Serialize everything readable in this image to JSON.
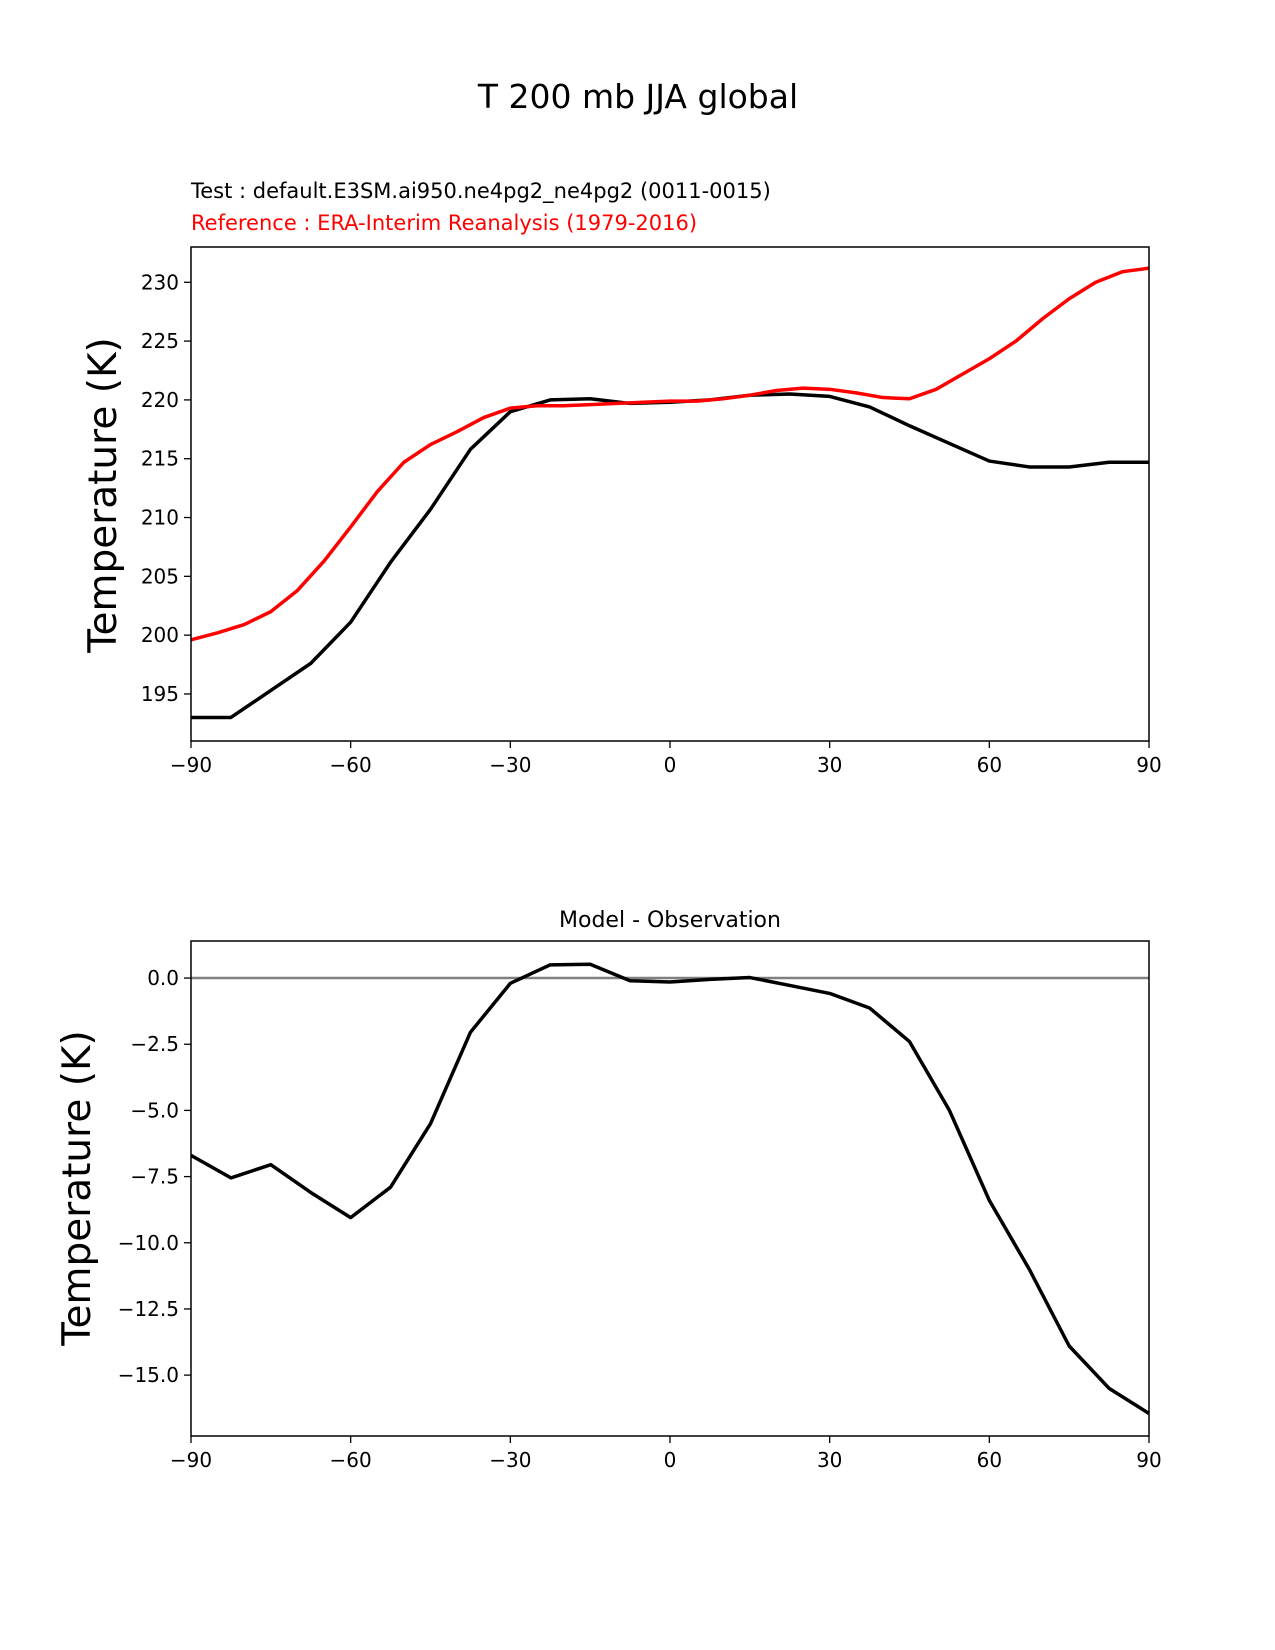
{
  "figure_title": "T 200 mb JJA global",
  "colors": {
    "test": "#000000",
    "reference": "#ff0000",
    "zero_line": "#808080"
  },
  "chart_data": [
    {
      "type": "line",
      "test_label": "Test : default.E3SM.ai950.ne4pg2_ne4pg2 (0011-0015)",
      "reference_label": "Reference : ERA-Interim Reanalysis (1979-2016)",
      "xlabel": "",
      "ylabel": "Temperature (K)",
      "xlim": [
        -90,
        90
      ],
      "ylim": [
        191,
        233
      ],
      "xticks": [
        -90,
        -60,
        -30,
        0,
        30,
        60,
        90
      ],
      "xtick_labels": [
        "−90",
        "−60",
        "−30",
        "0",
        "30",
        "60",
        "90"
      ],
      "yticks": [
        195,
        200,
        205,
        210,
        215,
        220,
        225,
        230
      ],
      "ytick_labels": [
        "195",
        "200",
        "205",
        "210",
        "215",
        "220",
        "225",
        "230"
      ],
      "series": [
        {
          "name": "Test",
          "color": "#000000",
          "x": [
            -90,
            -82.5,
            -75,
            -67.5,
            -60,
            -52.5,
            -45,
            -37.5,
            -30,
            -22.5,
            -15,
            -7.5,
            0,
            7.5,
            15,
            22.5,
            30,
            37.5,
            45,
            52.5,
            60,
            67.5,
            75,
            82.5,
            90
          ],
          "y": [
            193.0,
            193.0,
            195.3,
            197.6,
            201.1,
            206.2,
            210.7,
            215.8,
            219.0,
            220.0,
            220.1,
            219.7,
            219.8,
            220.0,
            220.4,
            220.5,
            220.3,
            219.4,
            217.8,
            216.3,
            214.8,
            214.3,
            214.3,
            214.7,
            214.7
          ]
        },
        {
          "name": "Reference",
          "color": "#ff0000",
          "x": [
            -90,
            -85,
            -80,
            -75,
            -70,
            -65,
            -60,
            -55,
            -50,
            -45,
            -40,
            -35,
            -30,
            -25,
            -20,
            -15,
            -10,
            -5,
            0,
            5,
            10,
            15,
            20,
            25,
            30,
            35,
            40,
            45,
            50,
            55,
            60,
            65,
            70,
            75,
            80,
            85,
            90
          ],
          "y": [
            199.6,
            200.2,
            200.9,
            202.0,
            203.8,
            206.3,
            209.2,
            212.2,
            214.7,
            216.2,
            217.3,
            218.5,
            219.3,
            219.5,
            219.5,
            219.6,
            219.7,
            219.8,
            219.9,
            219.9,
            220.1,
            220.4,
            220.8,
            221.0,
            220.9,
            220.6,
            220.2,
            220.1,
            220.9,
            222.2,
            223.5,
            225.0,
            226.9,
            228.6,
            230.0,
            230.9,
            231.2
          ]
        }
      ]
    },
    {
      "type": "line",
      "title": "Model - Observation",
      "xlabel": "",
      "ylabel": "Temperature (K)",
      "xlim": [
        -90,
        90
      ],
      "ylim": [
        -17.3,
        1.4
      ],
      "xticks": [
        -90,
        -60,
        -30,
        0,
        30,
        60,
        90
      ],
      "xtick_labels": [
        "−90",
        "−60",
        "−30",
        "0",
        "30",
        "60",
        "90"
      ],
      "yticks": [
        0.0,
        -2.5,
        -5.0,
        -7.5,
        -10.0,
        -12.5,
        -15.0
      ],
      "ytick_labels": [
        "0.0",
        "−2.5",
        "−5.0",
        "−7.5",
        "−10.0",
        "−12.5",
        "−15.0"
      ],
      "zero_line": 0,
      "series": [
        {
          "name": "Model - Observation",
          "color": "#000000",
          "x": [
            -90,
            -82.5,
            -75,
            -67.5,
            -60,
            -52.5,
            -45,
            -37.5,
            -30,
            -22.5,
            -15,
            -7.5,
            0,
            7.5,
            15,
            22.5,
            30,
            37.5,
            45,
            52.5,
            60,
            67.5,
            75,
            82.5,
            90
          ],
          "y": [
            -6.7,
            -7.55,
            -7.05,
            -8.1,
            -9.05,
            -7.9,
            -5.5,
            -2.05,
            -0.2,
            0.5,
            0.52,
            -0.1,
            -0.15,
            -0.05,
            0.02,
            -0.28,
            -0.58,
            -1.13,
            -2.4,
            -5.0,
            -8.4,
            -11.0,
            -13.9,
            -15.5,
            -16.45
          ]
        }
      ]
    }
  ]
}
